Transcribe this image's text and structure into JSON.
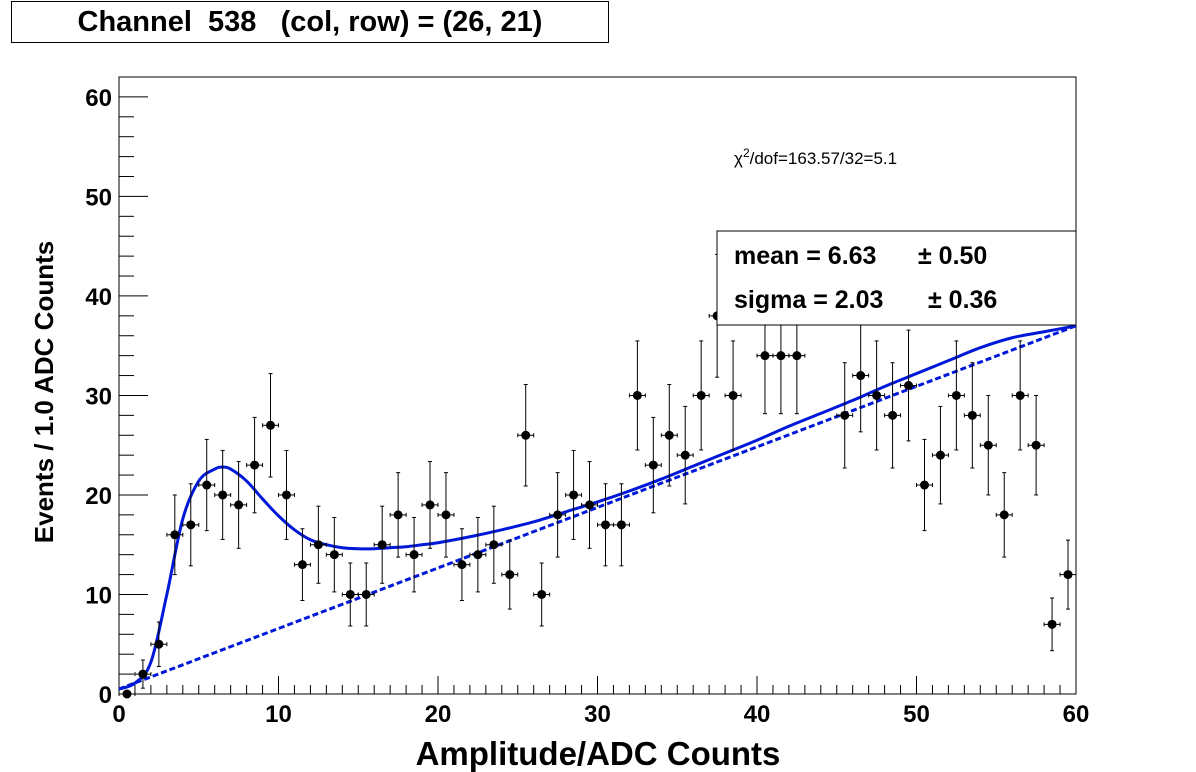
{
  "chart_data": {
    "type": "scatter",
    "title": "Channel  538   (col, row) = (26, 21)",
    "xlabel": "Amplitude/ADC Counts",
    "ylabel": "Events / 1.0 ADC Counts",
    "xlim": [
      0,
      60
    ],
    "ylim": [
      0,
      62
    ],
    "x_ticks": [
      0,
      10,
      20,
      30,
      40,
      50,
      60
    ],
    "y_ticks": [
      0,
      10,
      20,
      30,
      40,
      50,
      60
    ],
    "grid": false,
    "points": [
      {
        "x": 0.5,
        "y": 0
      },
      {
        "x": 1.5,
        "y": 2
      },
      {
        "x": 2.5,
        "y": 5
      },
      {
        "x": 3.5,
        "y": 16
      },
      {
        "x": 4.5,
        "y": 17
      },
      {
        "x": 5.5,
        "y": 21
      },
      {
        "x": 6.5,
        "y": 20
      },
      {
        "x": 7.5,
        "y": 19
      },
      {
        "x": 8.5,
        "y": 23
      },
      {
        "x": 9.5,
        "y": 27
      },
      {
        "x": 10.5,
        "y": 20
      },
      {
        "x": 11.5,
        "y": 13
      },
      {
        "x": 12.5,
        "y": 15
      },
      {
        "x": 13.5,
        "y": 14
      },
      {
        "x": 14.5,
        "y": 10
      },
      {
        "x": 15.5,
        "y": 10
      },
      {
        "x": 16.5,
        "y": 15
      },
      {
        "x": 17.5,
        "y": 18
      },
      {
        "x": 18.5,
        "y": 14
      },
      {
        "x": 19.5,
        "y": 19
      },
      {
        "x": 20.5,
        "y": 18
      },
      {
        "x": 21.5,
        "y": 13
      },
      {
        "x": 22.5,
        "y": 14
      },
      {
        "x": 23.5,
        "y": 15
      },
      {
        "x": 24.5,
        "y": 12
      },
      {
        "x": 25.5,
        "y": 26
      },
      {
        "x": 26.5,
        "y": 10
      },
      {
        "x": 27.5,
        "y": 18
      },
      {
        "x": 28.5,
        "y": 20
      },
      {
        "x": 29.5,
        "y": 19
      },
      {
        "x": 30.5,
        "y": 17
      },
      {
        "x": 31.5,
        "y": 17
      },
      {
        "x": 32.5,
        "y": 30
      },
      {
        "x": 33.5,
        "y": 23
      },
      {
        "x": 34.5,
        "y": 26
      },
      {
        "x": 35.5,
        "y": 24
      },
      {
        "x": 36.5,
        "y": 30
      },
      {
        "x": 37.5,
        "y": 38
      },
      {
        "x": 38.5,
        "y": 30
      },
      {
        "x": 40.5,
        "y": 34
      },
      {
        "x": 41.5,
        "y": 34
      },
      {
        "x": 42.5,
        "y": 34
      },
      {
        "x": 45.5,
        "y": 28
      },
      {
        "x": 46.5,
        "y": 32
      },
      {
        "x": 47.5,
        "y": 30
      },
      {
        "x": 48.5,
        "y": 28
      },
      {
        "x": 49.5,
        "y": 31
      },
      {
        "x": 50.5,
        "y": 21
      },
      {
        "x": 51.5,
        "y": 24
      },
      {
        "x": 52.5,
        "y": 30
      },
      {
        "x": 53.5,
        "y": 28
      },
      {
        "x": 54.5,
        "y": 25
      },
      {
        "x": 55.5,
        "y": 18
      },
      {
        "x": 56.5,
        "y": 30
      },
      {
        "x": 57.5,
        "y": 25
      },
      {
        "x": 58.5,
        "y": 7
      },
      {
        "x": 59.5,
        "y": 12
      }
    ],
    "fit": {
      "model": "gaussian + linear background",
      "mean": 6.63,
      "sigma": 2.03,
      "background": {
        "x": [
          0,
          60
        ],
        "y": [
          0.5,
          37
        ]
      },
      "curve": [
        [
          0,
          0.5
        ],
        [
          1,
          1.1
        ],
        [
          2,
          3.2
        ],
        [
          3,
          10.0
        ],
        [
          4,
          17.6
        ],
        [
          5,
          21.4
        ],
        [
          6,
          22.6
        ],
        [
          6.5,
          22.8
        ],
        [
          7,
          22.6
        ],
        [
          8,
          21.4
        ],
        [
          9,
          19.6
        ],
        [
          10,
          17.9
        ],
        [
          11,
          16.5
        ],
        [
          12,
          15.5
        ],
        [
          13,
          15.0
        ],
        [
          14,
          14.7
        ],
        [
          15,
          14.6
        ],
        [
          16,
          14.6
        ],
        [
          17,
          14.7
        ],
        [
          18,
          14.8
        ],
        [
          19,
          15.0
        ],
        [
          20,
          15.2
        ],
        [
          22,
          15.8
        ],
        [
          24,
          16.5
        ],
        [
          26,
          17.3
        ],
        [
          28,
          18.3
        ],
        [
          30,
          19.3
        ],
        [
          32,
          20.4
        ],
        [
          34,
          21.6
        ],
        [
          36,
          22.9
        ],
        [
          38,
          24.2
        ],
        [
          40,
          25.5
        ],
        [
          42,
          26.9
        ],
        [
          44,
          28.2
        ],
        [
          46,
          29.5
        ],
        [
          48,
          30.9
        ],
        [
          50,
          32.2
        ],
        [
          52,
          33.5
        ],
        [
          54,
          34.8
        ],
        [
          56,
          35.8
        ],
        [
          58,
          36.4
        ],
        [
          60,
          37.0
        ]
      ]
    },
    "annotation": {
      "chi_prefix": "χ",
      "chi_sup": "2",
      "chi_rest": "/dof=163.57/32=5.1"
    },
    "stats": {
      "mean_label": "mean =  6.63",
      "mean_err": "± 0.50",
      "sigma_label": "sigma =  2.03",
      "sigma_err": "± 0.36"
    },
    "colors": {
      "points": "#000000",
      "fit": "#0018d8",
      "frame": "#000000"
    }
  }
}
